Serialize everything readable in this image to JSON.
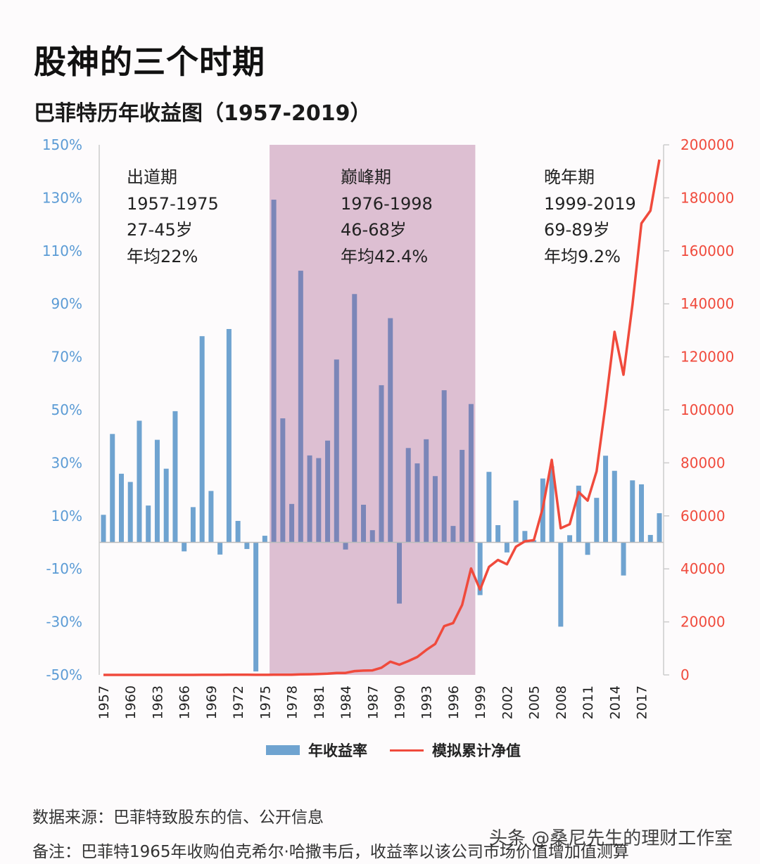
{
  "title": "股神的三个时期",
  "subtitle": "巴菲特历年收益图（1957-2019）",
  "periods": [
    {
      "name": "出道期",
      "years": "1957-1975",
      "age": "27-45岁",
      "avg": "年均22%"
    },
    {
      "name": "巅峰期",
      "years": "1976-1998",
      "age": "46-68岁",
      "avg": "年均42.4%"
    },
    {
      "name": "晚年期",
      "years": "1999-2019",
      "age": "69-89岁",
      "avg": "年均9.2%"
    }
  ],
  "legend": {
    "bar": "年收益率",
    "line": "模拟累计净值"
  },
  "footnotes": {
    "source": "数据来源：巴菲特致股东的信、公开信息",
    "remark": "备注：巴菲特1965年收购伯克希尔·哈撒韦后，收益率以该公司市场价值增加值测算"
  },
  "watermark": "头条 @桑尼先生的理财工作室",
  "colors": {
    "bar": "#6fa3d0",
    "bar_highlight": "#7b86b8",
    "line": "#f04a3c",
    "highlight_band": "#ddbfd2",
    "left_axis": "#5b9bd5",
    "right_axis": "#f04a3c"
  },
  "chart_data": {
    "type": "bar+line",
    "highlight_range": [
      1976,
      1998
    ],
    "x": [
      1957,
      1958,
      1959,
      1960,
      1961,
      1962,
      1963,
      1964,
      1965,
      1966,
      1967,
      1968,
      1969,
      1970,
      1971,
      1972,
      1973,
      1974,
      1975,
      1976,
      1977,
      1978,
      1979,
      1980,
      1981,
      1982,
      1983,
      1984,
      1985,
      1986,
      1987,
      1988,
      1989,
      1990,
      1991,
      1992,
      1993,
      1994,
      1995,
      1996,
      1997,
      1998,
      1999,
      2000,
      2001,
      2002,
      2003,
      2004,
      2005,
      2006,
      2007,
      2008,
      2009,
      2010,
      2011,
      2012,
      2013,
      2014,
      2015,
      2016,
      2017,
      2018,
      2019
    ],
    "x_tick_labels": [
      "1957",
      "1960",
      "1963",
      "1966",
      "1969",
      "1972",
      "1975",
      "1978",
      "1981",
      "1984",
      "1987",
      "1990",
      "1993",
      "1996",
      "1999",
      "2002",
      "2005",
      "2008",
      "2011",
      "2014",
      "2017"
    ],
    "series": [
      {
        "name": "年收益率",
        "type": "bar",
        "axis": "left",
        "unit": "%",
        "values": [
          10.4,
          40.9,
          25.9,
          22.8,
          45.9,
          13.9,
          38.7,
          27.8,
          49.5,
          -3.4,
          13.3,
          77.8,
          19.4,
          -4.6,
          80.5,
          8.1,
          -2.5,
          -48.7,
          2.5,
          129.3,
          46.8,
          14.5,
          102.5,
          32.8,
          31.8,
          38.4,
          69.0,
          -2.7,
          93.7,
          14.2,
          4.6,
          59.3,
          84.6,
          -23.1,
          35.6,
          29.8,
          38.9,
          25.0,
          57.4,
          6.2,
          34.9,
          52.2,
          -19.9,
          26.6,
          6.5,
          -3.8,
          15.8,
          4.3,
          0.8,
          24.1,
          28.7,
          -31.8,
          2.7,
          21.4,
          -4.7,
          16.8,
          32.7,
          27.0,
          -12.5,
          23.4,
          21.9,
          2.8,
          11.0
        ]
      },
      {
        "name": "模拟累计净值",
        "type": "line",
        "axis": "right",
        "values": [
          1.1,
          1.6,
          2.0,
          2.4,
          3.5,
          4.0,
          5.5,
          7.1,
          10.6,
          10.3,
          11.6,
          20.7,
          24.7,
          23.5,
          42.4,
          45.8,
          44.7,
          22.9,
          23.5,
          54,
          79,
          91,
          184,
          244,
          322,
          446,
          754,
          733,
          1420,
          1622,
          1697,
          2703,
          4988,
          3836,
          5201,
          6751,
          9377,
          11703,
          18420,
          19560,
          26390,
          40160,
          32170,
          40730,
          43380,
          41730,
          48330,
          50400,
          50810,
          63050,
          81150,
          55340,
          56840,
          69000,
          65760,
          76810,
          101920,
          129440,
          113260,
          139770,
          170380,
          175150,
          194410
        ]
      }
    ],
    "left_axis": {
      "range": [
        -50,
        150
      ],
      "ticks": [
        "150%",
        "130%",
        "110%",
        "90%",
        "70%",
        "50%",
        "30%",
        "10%",
        "-10%",
        "-30%",
        "-50%"
      ]
    },
    "right_axis": {
      "range": [
        0,
        200000
      ],
      "ticks": [
        "200000",
        "180000",
        "160000",
        "140000",
        "120000",
        "100000",
        "80000",
        "60000",
        "40000",
        "20000",
        "0"
      ]
    },
    "grid": false,
    "legend_position": "bottom"
  }
}
